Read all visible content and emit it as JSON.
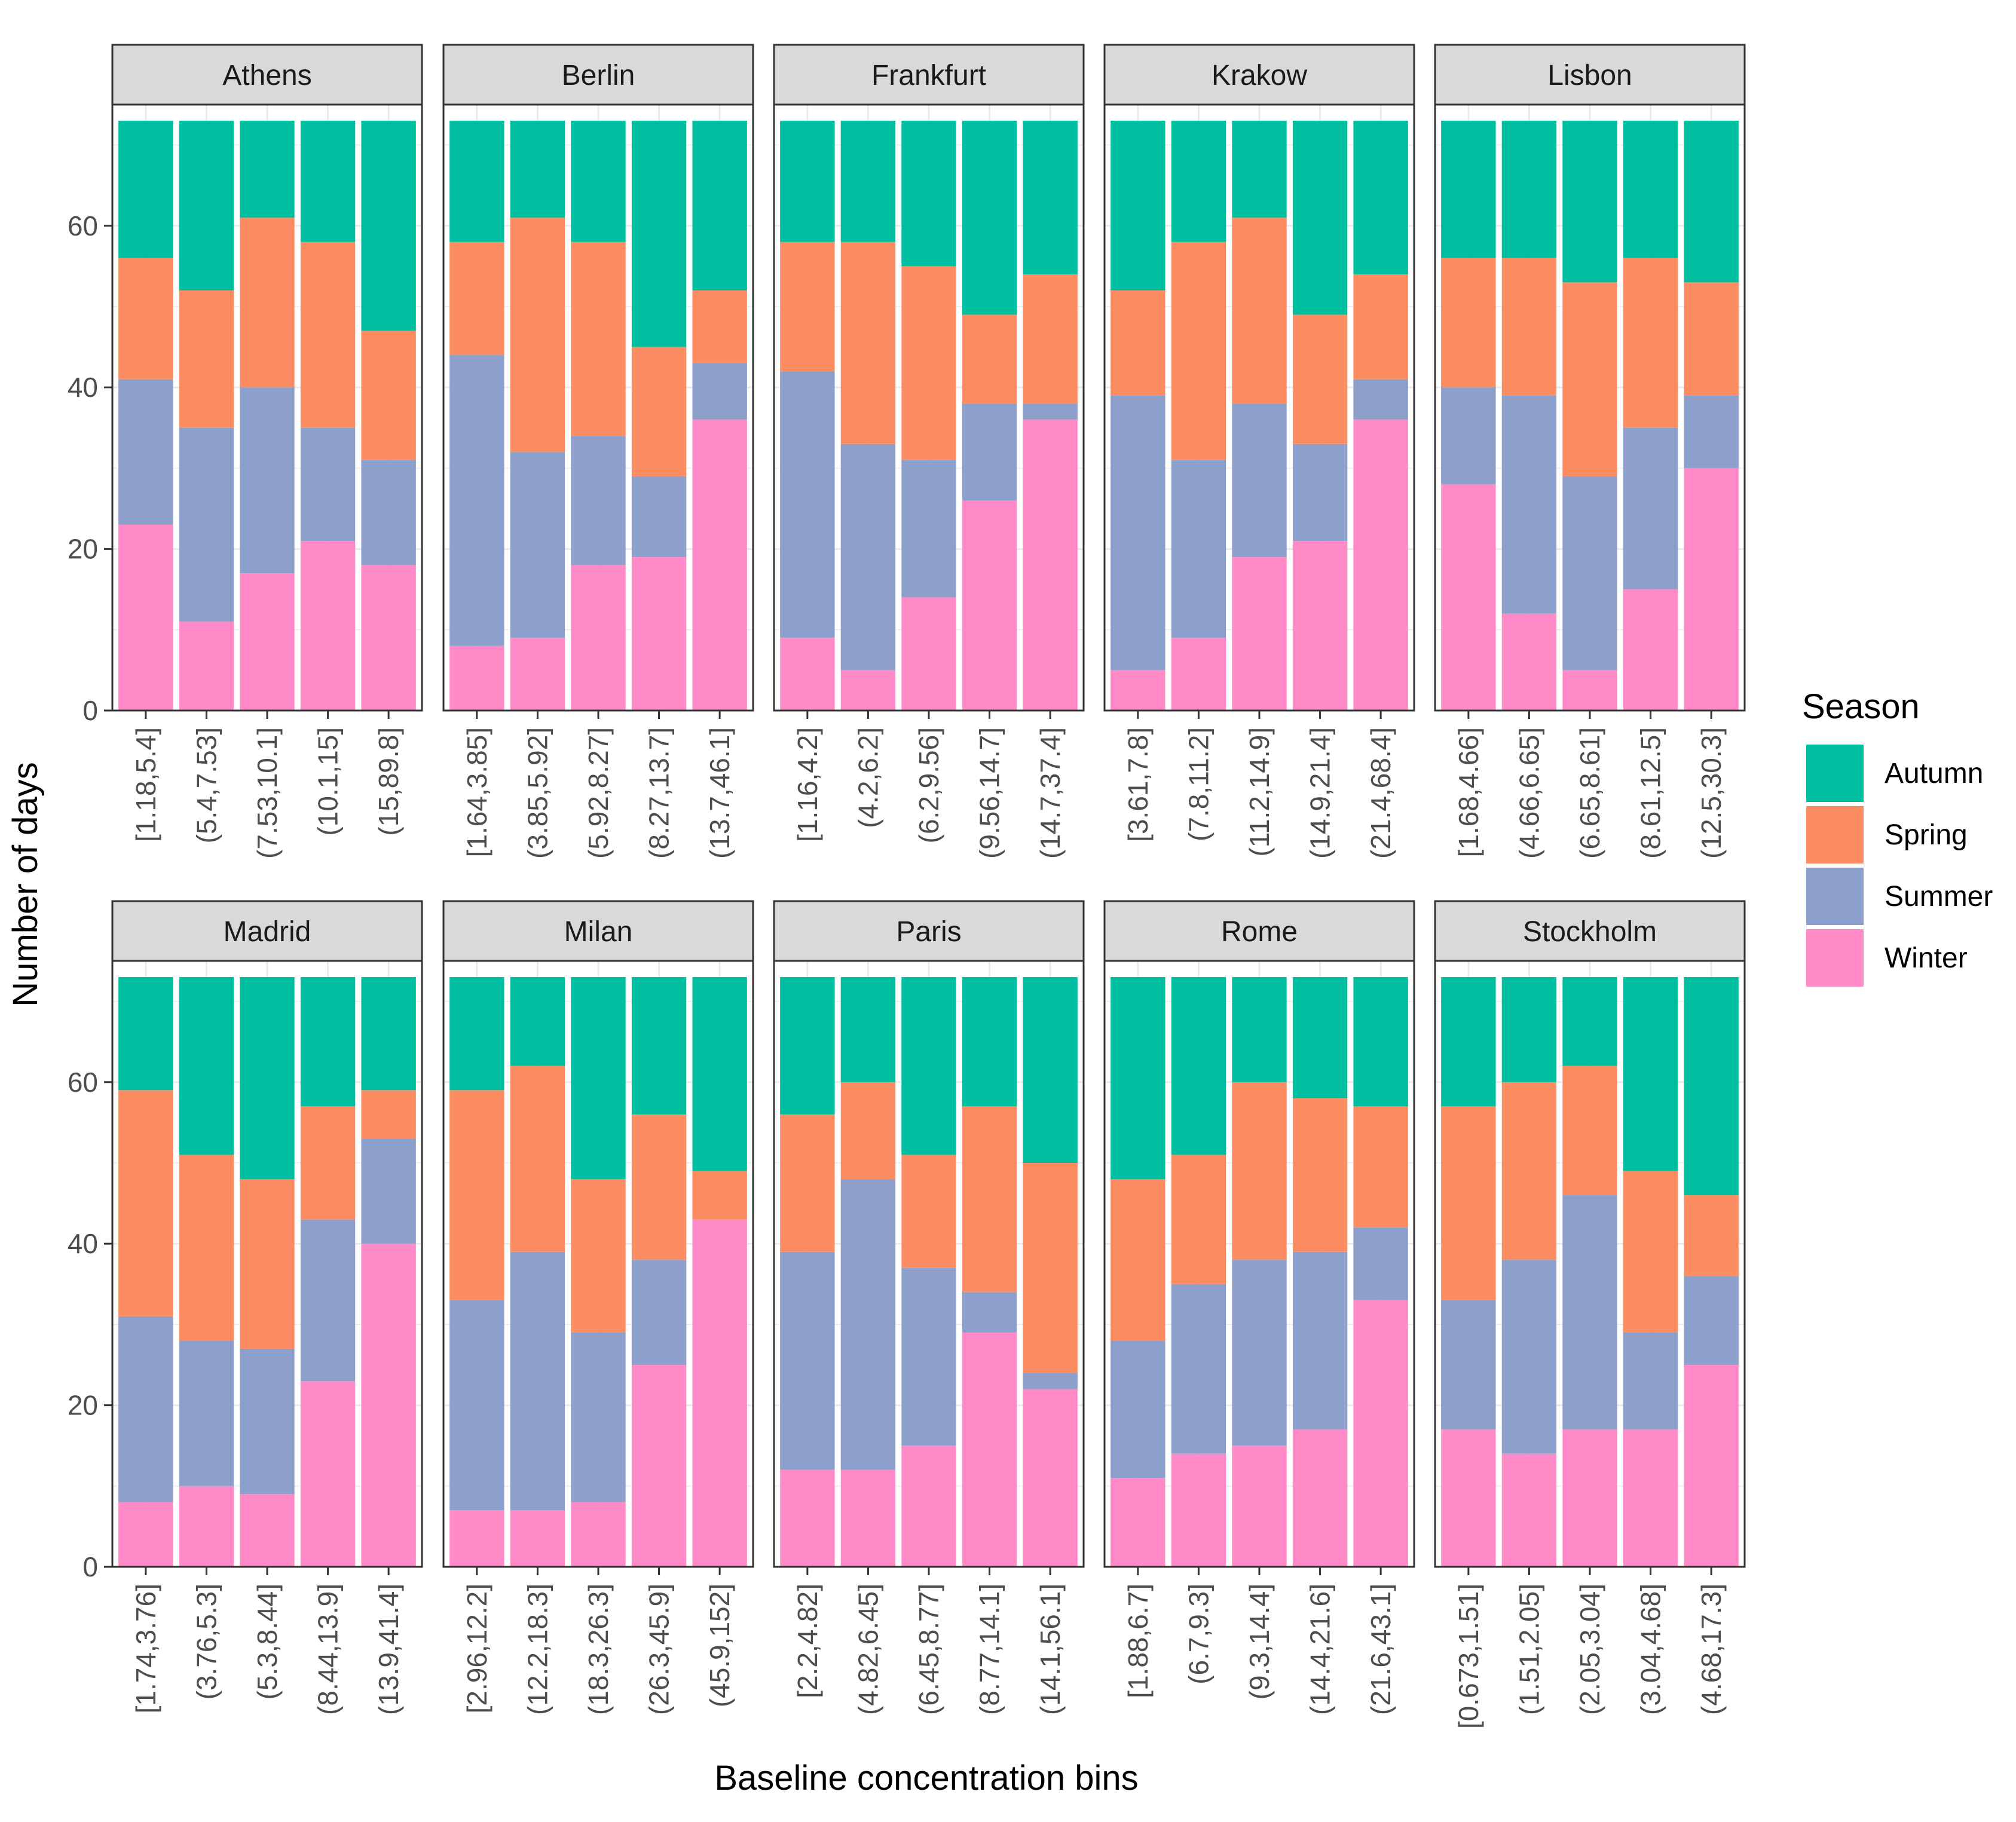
{
  "chart_data": {
    "type": "bar",
    "stacked": true,
    "xlabel": "Baseline concentration bins",
    "ylabel": "Number of days",
    "ylim": [
      0,
      75
    ],
    "yticks": [
      0,
      20,
      40,
      60
    ],
    "legend": {
      "title": "Season",
      "position": "right",
      "entries": [
        "Autumn",
        "Spring",
        "Summer",
        "Winter"
      ]
    },
    "colors": {
      "Autumn": "#00BFA0",
      "Spring": "#FC8D62",
      "Summer": "#8DA0CB",
      "Winter": "#FF8AC8",
      "strip": "#D9D9D9",
      "grid": "#EBEBEB",
      "border": "#333333"
    },
    "stack_order_bottom_to_top": [
      "Winter",
      "Summer",
      "Spring",
      "Autumn"
    ],
    "panels": [
      {
        "city": "Athens",
        "categories": [
          "[1.18,5.4]",
          "(5.4,7.53]",
          "(7.53,10.1]",
          "(10.1,15]",
          "(15,89.8]"
        ],
        "series": [
          {
            "name": "Winter",
            "values": [
              23,
              11,
              17,
              21,
              18
            ]
          },
          {
            "name": "Summer",
            "values": [
              18,
              24,
              23,
              14,
              13
            ]
          },
          {
            "name": "Spring",
            "values": [
              15,
              17,
              21,
              23,
              16
            ]
          },
          {
            "name": "Autumn",
            "values": [
              17,
              21,
              12,
              15,
              26
            ]
          }
        ]
      },
      {
        "city": "Berlin",
        "categories": [
          "[1.64,3.85]",
          "(3.85,5.92]",
          "(5.92,8.27]",
          "(8.27,13.7]",
          "(13.7,46.1]"
        ],
        "series": [
          {
            "name": "Winter",
            "values": [
              8,
              9,
              18,
              19,
              36
            ]
          },
          {
            "name": "Summer",
            "values": [
              36,
              23,
              16,
              10,
              7
            ]
          },
          {
            "name": "Spring",
            "values": [
              14,
              29,
              24,
              16,
              9
            ]
          },
          {
            "name": "Autumn",
            "values": [
              15,
              12,
              15,
              28,
              21
            ]
          }
        ]
      },
      {
        "city": "Frankfurt",
        "categories": [
          "[1.16,4.2]",
          "(4.2,6.2]",
          "(6.2,9.56]",
          "(9.56,14.7]",
          "(14.7,37.4]"
        ],
        "series": [
          {
            "name": "Winter",
            "values": [
              9,
              5,
              14,
              26,
              36
            ]
          },
          {
            "name": "Summer",
            "values": [
              33,
              28,
              17,
              12,
              2
            ]
          },
          {
            "name": "Spring",
            "values": [
              16,
              25,
              24,
              11,
              16
            ]
          },
          {
            "name": "Autumn",
            "values": [
              15,
              15,
              18,
              24,
              19
            ]
          }
        ]
      },
      {
        "city": "Krakow",
        "categories": [
          "[3.61,7.8]",
          "(7.8,11.2]",
          "(11.2,14.9]",
          "(14.9,21.4]",
          "(21.4,68.4]"
        ],
        "series": [
          {
            "name": "Winter",
            "values": [
              5,
              9,
              19,
              21,
              36
            ]
          },
          {
            "name": "Summer",
            "values": [
              34,
              22,
              19,
              12,
              5
            ]
          },
          {
            "name": "Spring",
            "values": [
              13,
              27,
              23,
              16,
              13
            ]
          },
          {
            "name": "Autumn",
            "values": [
              21,
              15,
              12,
              24,
              19
            ]
          }
        ]
      },
      {
        "city": "Lisbon",
        "categories": [
          "[1.68,4.66]",
          "(4.66,6.65]",
          "(6.65,8.61]",
          "(8.61,12.5]",
          "(12.5,30.3]"
        ],
        "series": [
          {
            "name": "Winter",
            "values": [
              28,
              12,
              5,
              15,
              30
            ]
          },
          {
            "name": "Summer",
            "values": [
              12,
              27,
              24,
              20,
              9
            ]
          },
          {
            "name": "Spring",
            "values": [
              16,
              17,
              24,
              21,
              14
            ]
          },
          {
            "name": "Autumn",
            "values": [
              17,
              17,
              20,
              17,
              20
            ]
          }
        ]
      },
      {
        "city": "Madrid",
        "categories": [
          "[1.74,3.76]",
          "(3.76,5.3]",
          "(5.3,8.44]",
          "(8.44,13.9]",
          "(13.9,41.4]"
        ],
        "series": [
          {
            "name": "Winter",
            "values": [
              8,
              10,
              9,
              23,
              40
            ]
          },
          {
            "name": "Summer",
            "values": [
              23,
              18,
              18,
              20,
              13
            ]
          },
          {
            "name": "Spring",
            "values": [
              28,
              23,
              21,
              14,
              6
            ]
          },
          {
            "name": "Autumn",
            "values": [
              14,
              22,
              25,
              16,
              14
            ]
          }
        ]
      },
      {
        "city": "Milan",
        "categories": [
          "[2.96,12.2]",
          "(12.2,18.3]",
          "(18.3,26.3]",
          "(26.3,45.9]",
          "(45.9,152]"
        ],
        "series": [
          {
            "name": "Winter",
            "values": [
              7,
              7,
              8,
              25,
              43
            ]
          },
          {
            "name": "Summer",
            "values": [
              26,
              32,
              21,
              13,
              0
            ]
          },
          {
            "name": "Spring",
            "values": [
              26,
              23,
              19,
              18,
              6
            ]
          },
          {
            "name": "Autumn",
            "values": [
              14,
              11,
              25,
              17,
              24
            ]
          }
        ]
      },
      {
        "city": "Paris",
        "categories": [
          "[2.2,4.82]",
          "(4.82,6.45]",
          "(6.45,8.77]",
          "(8.77,14.1]",
          "(14.1,56.1]"
        ],
        "series": [
          {
            "name": "Winter",
            "values": [
              12,
              12,
              15,
              29,
              22
            ]
          },
          {
            "name": "Summer",
            "values": [
              27,
              36,
              22,
              5,
              2
            ]
          },
          {
            "name": "Spring",
            "values": [
              17,
              12,
              14,
              23,
              26
            ]
          },
          {
            "name": "Autumn",
            "values": [
              17,
              13,
              22,
              16,
              23
            ]
          }
        ]
      },
      {
        "city": "Rome",
        "categories": [
          "[1.88,6.7]",
          "(6.7,9.3]",
          "(9.3,14.4]",
          "(14.4,21.6]",
          "(21.6,43.1]"
        ],
        "series": [
          {
            "name": "Winter",
            "values": [
              11,
              14,
              15,
              17,
              33
            ]
          },
          {
            "name": "Summer",
            "values": [
              17,
              21,
              23,
              22,
              9
            ]
          },
          {
            "name": "Spring",
            "values": [
              20,
              16,
              22,
              19,
              15
            ]
          },
          {
            "name": "Autumn",
            "values": [
              25,
              22,
              13,
              15,
              16
            ]
          }
        ]
      },
      {
        "city": "Stockholm",
        "categories": [
          "[0.673,1.51]",
          "(1.51,2.05]",
          "(2.05,3.04]",
          "(3.04,4.68]",
          "(4.68,17.3]"
        ],
        "series": [
          {
            "name": "Winter",
            "values": [
              17,
              14,
              17,
              17,
              25
            ]
          },
          {
            "name": "Summer",
            "values": [
              16,
              24,
              29,
              12,
              11
            ]
          },
          {
            "name": "Spring",
            "values": [
              24,
              22,
              16,
              20,
              10
            ]
          },
          {
            "name": "Autumn",
            "values": [
              16,
              13,
              11,
              24,
              27
            ]
          }
        ]
      }
    ]
  }
}
